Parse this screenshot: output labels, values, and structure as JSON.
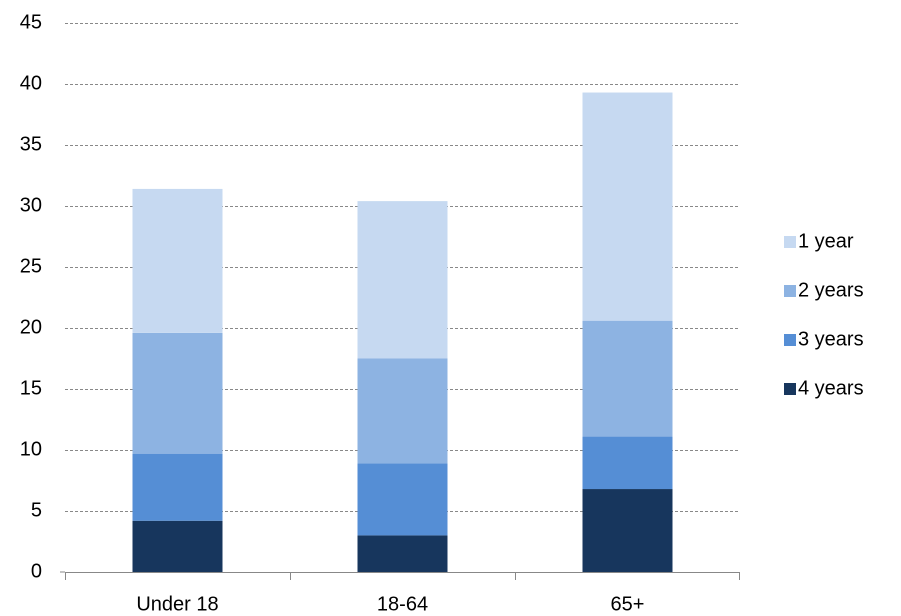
{
  "chart_data": {
    "type": "stacked_bar",
    "categories": [
      "Under 18",
      "18-64",
      "65+"
    ],
    "series": [
      {
        "name": "1 year",
        "color": "#c6d9f1",
        "values": [
          11.8,
          12.9,
          18.7
        ]
      },
      {
        "name": "2 years",
        "color": "#8db3e2",
        "values": [
          9.9,
          8.6,
          9.5
        ]
      },
      {
        "name": "3 years",
        "color": "#558ed5",
        "values": [
          5.5,
          5.9,
          4.3
        ]
      },
      {
        "name": "4 years",
        "color": "#17365d",
        "values": [
          4.2,
          3.0,
          6.8
        ]
      }
    ],
    "ylim": [
      0,
      45
    ],
    "yticks": [
      0,
      5,
      10,
      15,
      20,
      25,
      30,
      35,
      40,
      45
    ],
    "grid": true,
    "legend": "right"
  }
}
